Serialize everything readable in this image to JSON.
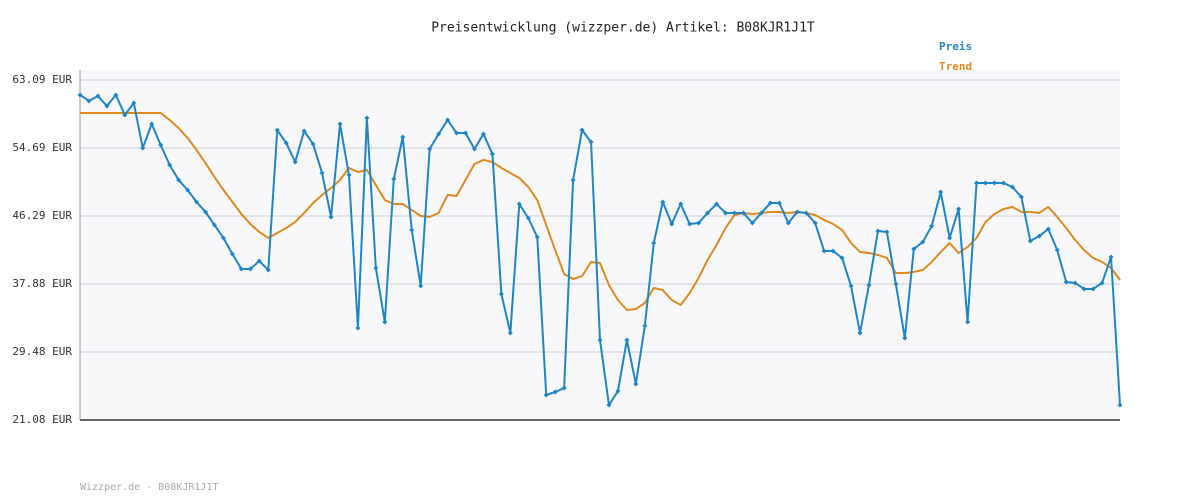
{
  "chart_data": {
    "type": "line",
    "title": "Preisentwicklung (wizzper.de) Artikel: B08KJR1J1T",
    "footer": "Wizzper.de - B08KJR1J1T",
    "ylim": [
      21.08,
      63.09
    ],
    "yticks": [
      {
        "value": 63.09,
        "label": "63.09 EUR"
      },
      {
        "value": 54.69,
        "label": "54.69 EUR"
      },
      {
        "value": 46.29,
        "label": "46.29 EUR"
      },
      {
        "value": 37.88,
        "label": "37.88 EUR"
      },
      {
        "value": 29.48,
        "label": "29.48 EUR"
      },
      {
        "value": 21.08,
        "label": "21.08 EUR"
      }
    ],
    "grid": true,
    "legend": "top-right",
    "series": [
      {
        "name": "Preis",
        "color": "#1f86c6",
        "markers": true,
        "values": [
          61.24,
          60.5,
          61.11,
          59.88,
          61.24,
          58.77,
          60.25,
          54.69,
          57.65,
          55.06,
          52.59,
          50.73,
          49.5,
          48.02,
          46.78,
          45.17,
          43.57,
          41.59,
          39.74,
          39.74,
          40.73,
          39.61,
          56.91,
          55.31,
          52.96,
          56.79,
          55.18,
          51.6,
          46.16,
          57.65,
          51.35,
          32.45,
          58.39,
          39.86,
          33.19,
          50.86,
          56.05,
          44.56,
          37.64,
          54.56,
          56.42,
          58.15,
          56.54,
          56.54,
          54.56,
          56.42,
          53.95,
          36.65,
          31.83,
          47.77,
          46.04,
          43.69,
          24.17,
          24.54,
          25.03,
          50.73,
          56.91,
          55.43,
          30.96,
          22.93,
          24.66,
          30.96,
          25.53,
          32.69,
          42.95,
          48.02,
          45.3,
          47.77,
          45.3,
          45.42,
          46.66,
          47.77,
          46.66,
          46.66,
          46.66,
          45.42,
          46.66,
          47.89,
          47.89,
          45.42,
          46.78,
          46.66,
          45.42,
          41.96,
          41.96,
          41.1,
          37.64,
          31.83,
          37.76,
          44.43,
          44.31,
          37.88,
          31.21,
          42.21,
          43.07,
          45.05,
          49.25,
          43.57,
          47.15,
          33.19,
          50.36,
          50.36,
          50.36,
          50.36,
          49.87,
          48.63,
          43.2,
          43.81,
          44.68,
          42.08,
          38.13,
          38.01,
          37.27,
          37.27,
          38.01,
          41.22,
          22.93
        ]
      },
      {
        "name": "Trend",
        "color": "#e08a1e",
        "markers": false,
        "values": [
          59.01,
          59.01,
          59.01,
          59.01,
          59.01,
          59.01,
          59.01,
          59.01,
          59.01,
          59.01,
          58.15,
          57.16,
          55.92,
          54.44,
          52.83,
          51.1,
          49.5,
          48.02,
          46.53,
          45.3,
          44.31,
          43.57,
          44.19,
          44.8,
          45.54,
          46.66,
          47.89,
          48.88,
          49.75,
          50.73,
          52.22,
          51.72,
          51.97,
          50.12,
          48.26,
          47.77,
          47.77,
          47.03,
          46.29,
          46.16,
          46.66,
          48.88,
          48.76,
          50.73,
          52.71,
          53.21,
          52.96,
          52.22,
          51.6,
          50.98,
          49.87,
          48.26,
          45.17,
          42.08,
          39.12,
          38.5,
          38.87,
          40.6,
          40.48,
          37.76,
          35.91,
          34.67,
          34.79,
          35.54,
          37.39,
          37.14,
          35.91,
          35.29,
          36.77,
          38.62,
          40.85,
          42.7,
          44.8,
          46.41,
          46.66,
          46.53,
          46.66,
          46.78,
          46.78,
          46.66,
          46.78,
          46.66,
          46.41,
          45.79,
          45.3,
          44.56,
          42.95,
          41.84,
          41.71,
          41.47,
          41.1,
          39.24,
          39.24,
          39.37,
          39.61,
          40.6,
          41.84,
          42.95,
          41.71,
          42.46,
          43.57,
          45.54,
          46.53,
          47.15,
          47.4,
          46.78,
          46.78,
          46.66,
          47.4,
          46.16,
          44.8,
          43.32,
          42.08,
          41.1,
          40.6,
          39.86,
          38.38
        ]
      }
    ]
  }
}
